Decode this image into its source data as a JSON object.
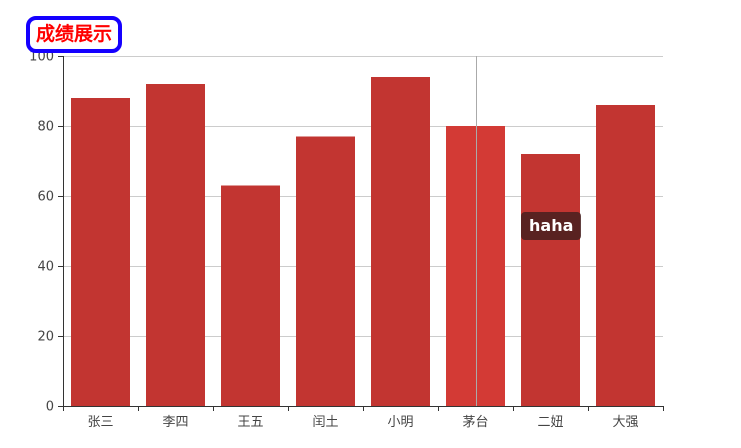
{
  "chart_data": {
    "type": "bar",
    "title": "成绩展示",
    "categories": [
      "张三",
      "李四",
      "王五",
      "闰土",
      "小明",
      "茅台",
      "二妞",
      "大强"
    ],
    "values": [
      88,
      92,
      63,
      77,
      94,
      80,
      72,
      86
    ],
    "ylim": [
      0,
      100
    ],
    "yticks": [
      0,
      20,
      40,
      60,
      80,
      100
    ],
    "xlabel": "",
    "ylabel": "",
    "grid": true,
    "bar_color": "#c23531",
    "highlight_color": "#d33a35",
    "highlight_index": 5,
    "tooltip_text": "haha"
  }
}
